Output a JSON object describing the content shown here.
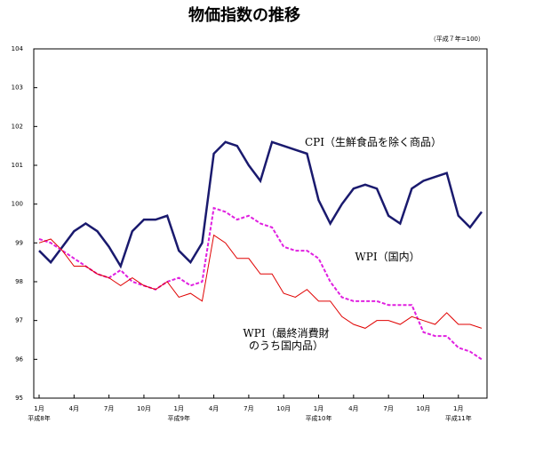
{
  "chart_data": {
    "type": "line",
    "title": "物価指数の推移",
    "unit_note": "（平成７年=100）",
    "categories": [
      "1月",
      null,
      null,
      "4月",
      null,
      null,
      "7月",
      null,
      null,
      "10月",
      null,
      null,
      "1月",
      null,
      null,
      "4月",
      null,
      null,
      "7月",
      null,
      null,
      "10月",
      null,
      null,
      "1月",
      null,
      null,
      "4月",
      null,
      null,
      "7月",
      null,
      null,
      "10月",
      null,
      null,
      "1月",
      null,
      null
    ],
    "year_labels": [
      "平成8年",
      null,
      null,
      null,
      null,
      null,
      null,
      null,
      null,
      null,
      null,
      null,
      "平成9年",
      null,
      null,
      null,
      null,
      null,
      null,
      null,
      null,
      null,
      null,
      null,
      "平成10年",
      null,
      null,
      null,
      null,
      null,
      null,
      null,
      null,
      null,
      null,
      null,
      "平成11年",
      null,
      null
    ],
    "ylim": [
      95,
      104
    ],
    "yticks": [
      95,
      96,
      97,
      98,
      99,
      100,
      101,
      102,
      103,
      104
    ],
    "grid": false,
    "series": [
      {
        "name": "CPI（生鮮食品を除く商品）",
        "color": "#1a1a6e",
        "style": "solid",
        "width": 2.5,
        "values": [
          98.8,
          98.5,
          98.9,
          99.3,
          99.5,
          99.3,
          98.9,
          98.4,
          99.3,
          99.6,
          99.6,
          99.7,
          98.8,
          98.5,
          99.0,
          101.3,
          101.6,
          101.5,
          101.0,
          100.6,
          101.6,
          101.5,
          101.4,
          101.3,
          100.1,
          99.5,
          100.0,
          100.4,
          100.5,
          100.4,
          99.7,
          99.5,
          100.4,
          100.6,
          100.7,
          100.8,
          99.7,
          99.4,
          99.8
        ]
      },
      {
        "name": "WPI（国内）",
        "color": "#e020e0",
        "style": "dashed",
        "width": 2,
        "values": [
          99.1,
          99.0,
          98.8,
          98.6,
          98.4,
          98.2,
          98.1,
          98.3,
          98.0,
          97.9,
          97.8,
          98.0,
          98.1,
          97.9,
          98.0,
          99.9,
          99.8,
          99.6,
          99.7,
          99.5,
          99.4,
          98.9,
          98.8,
          98.8,
          98.6,
          98.0,
          97.6,
          97.5,
          97.5,
          97.5,
          97.4,
          97.4,
          97.4,
          96.7,
          96.6,
          96.6,
          96.3,
          96.2,
          96.0
        ]
      },
      {
        "name": "WPI（最終消費財\nのうち国内品）",
        "color": "#e00000",
        "style": "solid",
        "width": 1,
        "values": [
          99.0,
          99.1,
          98.8,
          98.4,
          98.4,
          98.2,
          98.1,
          97.9,
          98.1,
          97.9,
          97.8,
          98.0,
          97.6,
          97.7,
          97.5,
          99.2,
          99.0,
          98.6,
          98.6,
          98.2,
          98.2,
          97.7,
          97.6,
          97.8,
          97.5,
          97.5,
          97.1,
          96.9,
          96.8,
          97.0,
          97.0,
          96.9,
          97.1,
          97.0,
          96.9,
          97.2,
          96.9,
          96.9,
          96.8
        ]
      }
    ]
  }
}
